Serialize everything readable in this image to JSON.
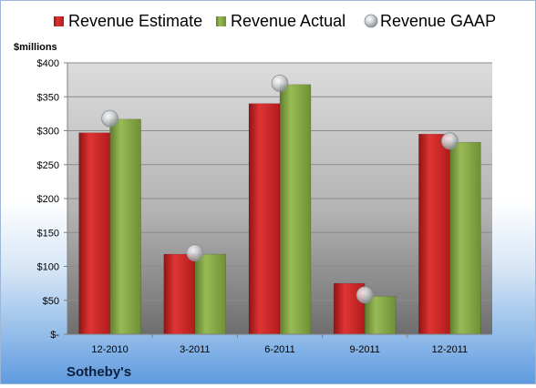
{
  "chart_data": {
    "type": "bar",
    "title": "Sotheby's",
    "ylabel": "$millions",
    "xlabel": "",
    "ylim": [
      0,
      400
    ],
    "y_ticks": [
      0,
      50,
      100,
      150,
      200,
      250,
      300,
      350,
      400
    ],
    "y_tick_labels": [
      "$-",
      "$50",
      "$100",
      "$150",
      "$200",
      "$250",
      "$300",
      "$350",
      "$400"
    ],
    "categories": [
      "12-2010",
      "3-2011",
      "6-2011",
      "9-2011",
      "12-2011"
    ],
    "series": [
      {
        "name": "Revenue Estimate",
        "kind": "bar",
        "color": "#d42a2a",
        "values": [
          297,
          118,
          340,
          75,
          295
        ]
      },
      {
        "name": "Revenue Actual",
        "kind": "bar",
        "color": "#8aac4a",
        "values": [
          317,
          118,
          368,
          56,
          283
        ]
      },
      {
        "name": "Revenue GAAP",
        "kind": "marker",
        "color": "#c0c4c8",
        "values": [
          318,
          120,
          370,
          58,
          285
        ]
      }
    ],
    "legend_position": "top",
    "grid": true
  }
}
